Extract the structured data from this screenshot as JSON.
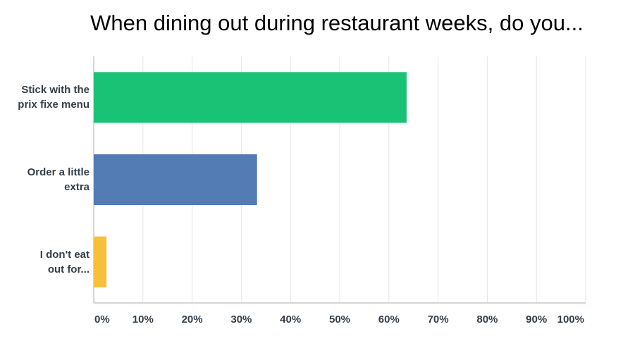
{
  "chart_data": {
    "type": "hbar",
    "title": "When dining out during restaurant weeks, do you...",
    "categories": [
      "Stick with the\nprix fixe menu",
      "Order a little\nextra",
      "I don't eat\nout for..."
    ],
    "values": [
      63.6,
      33.2,
      2.6
    ],
    "colors": [
      "#1ac276",
      "#537bb4",
      "#f9be3a"
    ],
    "xlim": [
      0,
      100
    ],
    "xticks": [
      {
        "value": 0,
        "label": "0%"
      },
      {
        "value": 10,
        "label": "10%"
      },
      {
        "value": 20,
        "label": "20%"
      },
      {
        "value": 30,
        "label": "30%"
      },
      {
        "value": 40,
        "label": "40%"
      },
      {
        "value": 50,
        "label": "50%"
      },
      {
        "value": 60,
        "label": "60%"
      },
      {
        "value": 70,
        "label": "70%"
      },
      {
        "value": 80,
        "label": "80%"
      },
      {
        "value": 90,
        "label": "90%"
      },
      {
        "value": 100,
        "label": "100%"
      }
    ],
    "grid": true
  }
}
